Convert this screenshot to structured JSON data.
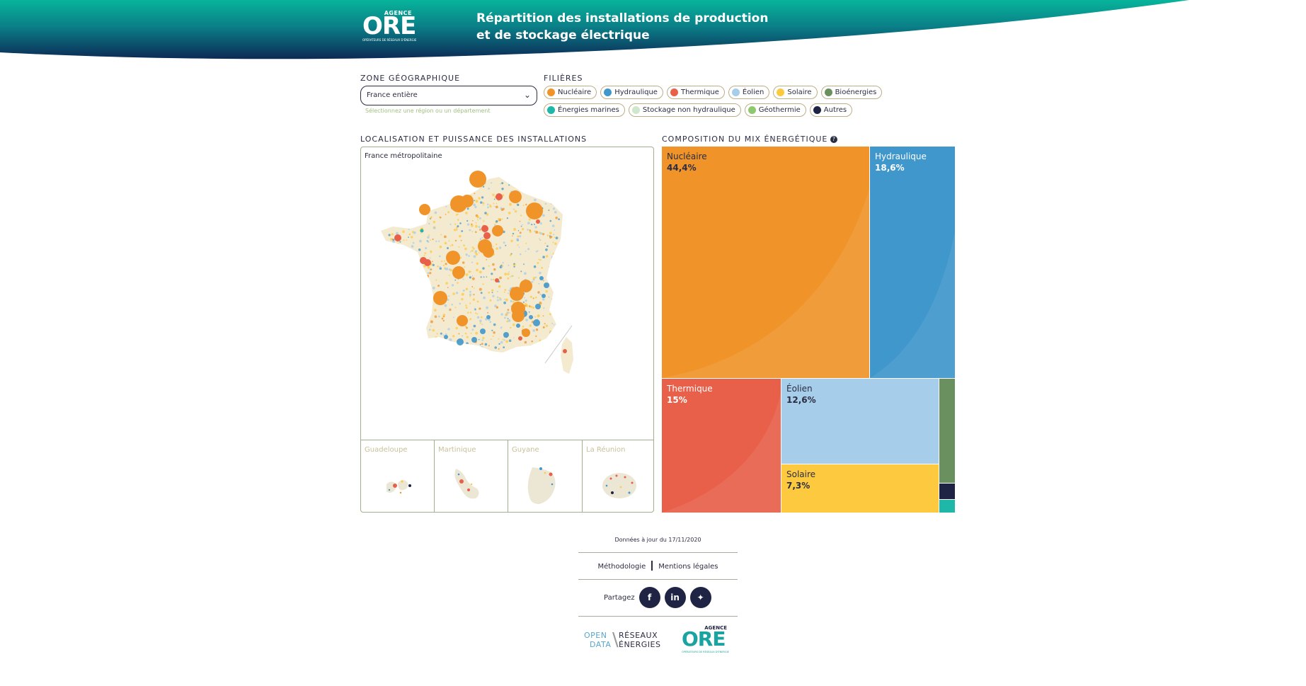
{
  "header": {
    "logo": {
      "agence": "AGENCE",
      "ore": "ORE",
      "tagline": "OPÉRATEURS DE RÉSEAUX D'ÉNERGIE"
    },
    "title_line1": "Répartition des installations de production",
    "title_line2": "et de stockage électrique"
  },
  "filters": {
    "zone_label": "ZONE GÉOGRAPHIQUE",
    "zone_value": "France entière",
    "zone_hint": "Sélectionnez une région ou un département",
    "filieres_label": "FILIÈRES",
    "chips": [
      {
        "label": "Nucléaire",
        "color": "#f0942a"
      },
      {
        "label": "Hydraulique",
        "color": "#3f97cc"
      },
      {
        "label": "Thermique",
        "color": "#e8604a"
      },
      {
        "label": "Éolien",
        "color": "#a6cde9"
      },
      {
        "label": "Solaire",
        "color": "#fdc93f"
      },
      {
        "label": "Bioénergies",
        "color": "#6a9060"
      },
      {
        "label": "Énergies marines",
        "color": "#1fb7a8"
      },
      {
        "label": "Stockage non hydraulique",
        "color": "#cfe8cc"
      },
      {
        "label": "Géothermie",
        "color": "#8fc96f"
      },
      {
        "label": "Autres",
        "color": "#1f2344"
      }
    ]
  },
  "map": {
    "label": "LOCALISATION ET PUISSANCE DES INSTALLATIONS",
    "title": "France métropolitaine",
    "overseas": [
      "Guadeloupe",
      "Martinique",
      "Guyane",
      "La Réunion"
    ]
  },
  "mix": {
    "label": "COMPOSITION DU MIX ÉNERGÉTIQUE",
    "help_icon": "question-circle-icon",
    "tiles": [
      {
        "name": "Nucléaire",
        "value": "44,4%",
        "color": "#f0942a"
      },
      {
        "name": "Hydraulique",
        "value": "18,6%",
        "color": "#3f97cc"
      },
      {
        "name": "Thermique",
        "value": "15%",
        "color": "#e8604a"
      },
      {
        "name": "Éolien",
        "value": "12,6%",
        "color": "#a6cde9"
      },
      {
        "name": "Solaire",
        "value": "7,3%",
        "color": "#fdc93f"
      }
    ]
  },
  "footer": {
    "update": "Données à jour du 17/11/2020",
    "methodologie": "Méthodologie",
    "mentions": "Mentions légales",
    "share": "Partagez",
    "share_icons": [
      "facebook-icon",
      "linkedin-icon",
      "twitter-icon"
    ],
    "odre": {
      "open": "OPEN",
      "data": "DATA",
      "reseaux": "RÉSEAUX",
      "energies": "ÉNERGIES"
    }
  }
}
